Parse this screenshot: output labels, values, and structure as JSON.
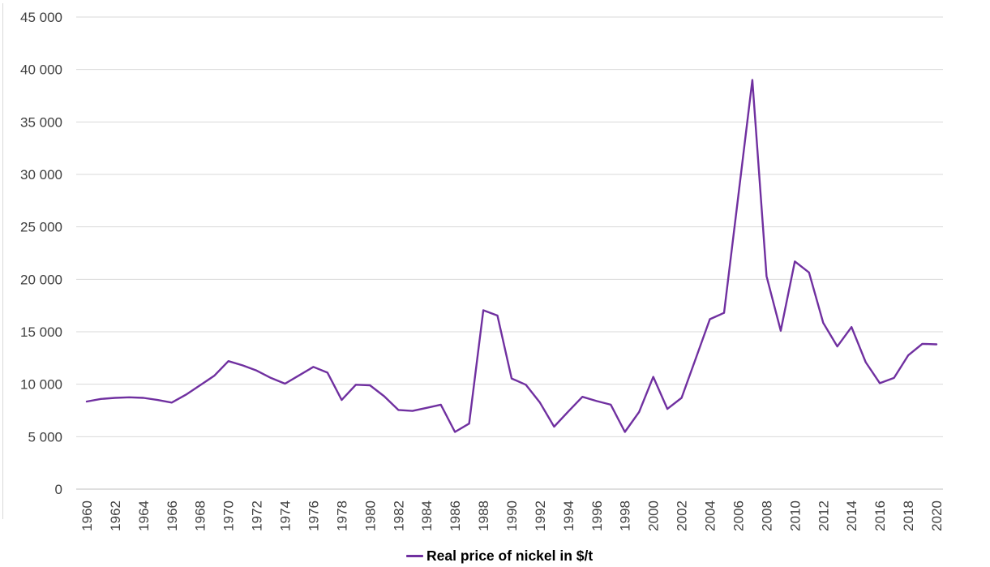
{
  "chart": {
    "legend": {
      "label": "Real price of nickel in $/t",
      "marker_color": "#7030A0"
    },
    "colors": {
      "line": "#7030A0",
      "gridline": "#d9d9d9",
      "axis_line": "#bfbfbf",
      "tick_text": "#3f3f3f",
      "background": "#ffffff"
    }
  },
  "chart_data": {
    "type": "line",
    "title": "",
    "xlabel": "",
    "ylabel": "",
    "grid": "horizontal",
    "legend_position": "bottom-center",
    "ylim": [
      0,
      45000
    ],
    "y_ticks": [
      0,
      5000,
      10000,
      15000,
      20000,
      25000,
      30000,
      35000,
      40000,
      45000
    ],
    "y_tick_labels": [
      "0",
      "5 000",
      "10 000",
      "15 000",
      "20 000",
      "25 000",
      "30 000",
      "35 000",
      "40 000",
      "45 000"
    ],
    "x_tick_labels": [
      "1960",
      "1962",
      "1964",
      "1966",
      "1968",
      "1970",
      "1972",
      "1974",
      "1976",
      "1978",
      "1980",
      "1982",
      "1984",
      "1986",
      "1988",
      "1990",
      "1992",
      "1994",
      "1996",
      "1998",
      "2000",
      "2002",
      "2004",
      "2006",
      "2008",
      "2010",
      "2012",
      "2014",
      "2016",
      "2018",
      "2020"
    ],
    "x": [
      1960,
      1961,
      1962,
      1963,
      1964,
      1965,
      1966,
      1967,
      1968,
      1969,
      1970,
      1971,
      1972,
      1973,
      1974,
      1975,
      1976,
      1977,
      1978,
      1979,
      1980,
      1981,
      1982,
      1983,
      1984,
      1985,
      1986,
      1987,
      1988,
      1989,
      1990,
      1991,
      1992,
      1993,
      1994,
      1995,
      1996,
      1997,
      1998,
      1999,
      2000,
      2001,
      2002,
      2003,
      2004,
      2005,
      2006,
      2007,
      2008,
      2009,
      2010,
      2011,
      2012,
      2013,
      2014,
      2015,
      2016,
      2017,
      2018,
      2019,
      2020
    ],
    "series": [
      {
        "name": "Real price of nickel in $/t",
        "color": "#7030A0",
        "values": [
          8350,
          8600,
          8700,
          8750,
          8700,
          8500,
          8250,
          9000,
          9900,
          10800,
          12200,
          11800,
          11300,
          10600,
          10050,
          10850,
          11650,
          11100,
          8500,
          9950,
          9900,
          8850,
          7550,
          7450,
          7750,
          8050,
          5450,
          6250,
          17050,
          16550,
          10550,
          9950,
          8250,
          5950,
          7400,
          8800,
          8400,
          8050,
          5450,
          7350,
          10700,
          7650,
          8700,
          12450,
          16200,
          16800,
          27900,
          39000,
          20300,
          15100,
          21700,
          20650,
          15850,
          13600,
          15450,
          12100,
          10100,
          10600,
          12750,
          13850,
          13800
        ]
      }
    ]
  }
}
